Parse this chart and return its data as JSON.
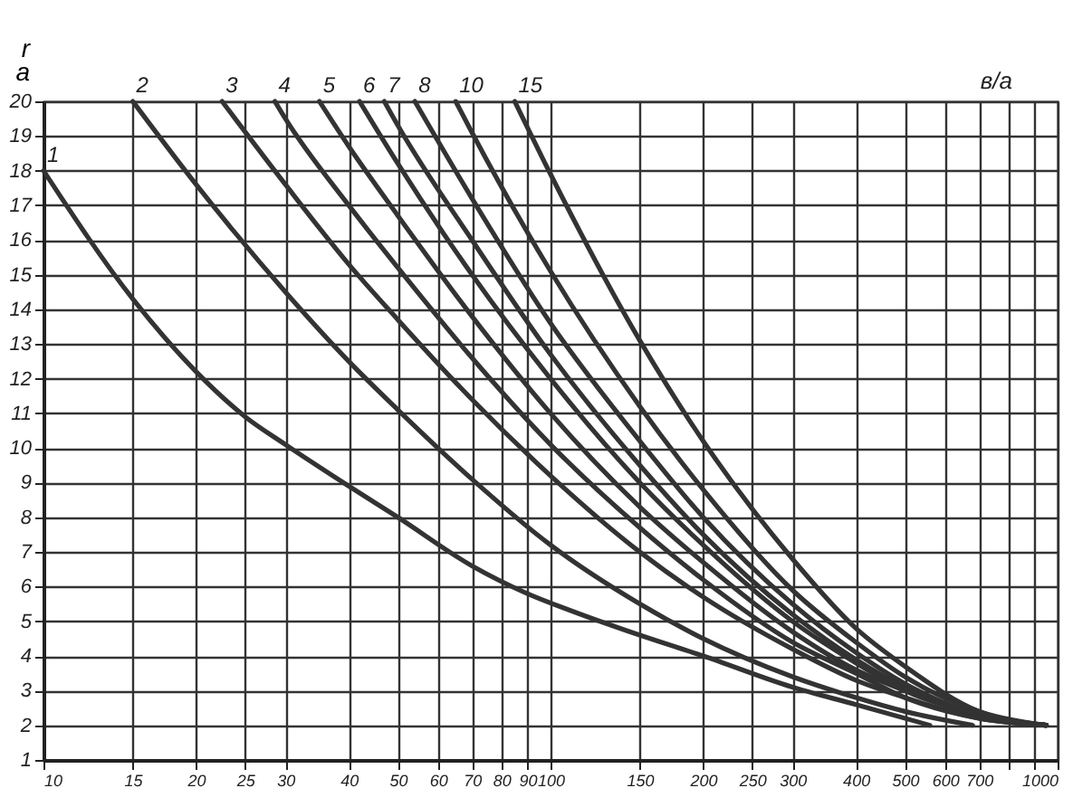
{
  "chart_data": {
    "type": "line",
    "ylabel": "r\na",
    "annotations": [
      "в/а"
    ],
    "xlim": [
      10,
      1000
    ],
    "log": "x",
    "xticks": [
      10,
      15,
      20,
      25,
      30,
      40,
      50,
      60,
      70,
      80,
      90,
      100,
      150,
      200,
      250,
      300,
      400,
      500,
      600,
      700,
      {
        "value": 800,
        "label": null
      },
      {
        "value": 900,
        "label": null
      },
      1000
    ],
    "ylim": [
      1,
      20
    ],
    "yticks": [
      1,
      2,
      3,
      4,
      5,
      6,
      7,
      8,
      9,
      10,
      11,
      12,
      13,
      14,
      15,
      16,
      17,
      18,
      19,
      20
    ],
    "grid": true,
    "series": [
      {
        "name": "1",
        "color": "#333333",
        "x": [
          10,
          15,
          20,
          25,
          30,
          40,
          50,
          70,
          90,
          110,
          150,
          200,
          300,
          400,
          560
        ],
        "values": [
          18,
          14.3,
          12.2,
          10.9,
          10.1,
          8.9,
          8.0,
          6.6,
          5.8,
          5.3,
          4.6,
          4.0,
          3.1,
          2.6,
          2.0
        ]
      },
      {
        "name": "2",
        "color": "#333333",
        "x": [
          15,
          20,
          30,
          40,
          50,
          70,
          100,
          150,
          200,
          300,
          400,
          500,
          680
        ],
        "values": [
          20,
          17.6,
          14.5,
          12.5,
          11.1,
          9.1,
          7.2,
          5.5,
          4.5,
          3.4,
          2.8,
          2.4,
          2.0
        ]
      },
      {
        "name": "3",
        "color": "#333333",
        "x": [
          22.5,
          30,
          40,
          50,
          70,
          100,
          150,
          200,
          300,
          400,
          500,
          700,
          950
        ],
        "values": [
          20,
          17.6,
          15.3,
          13.7,
          11.4,
          9.2,
          7.0,
          5.7,
          4.2,
          3.3,
          2.8,
          2.2,
          2.0
        ]
      },
      {
        "name": "4",
        "color": "#333333",
        "x": [
          28.6,
          30,
          40,
          50,
          70,
          100,
          150,
          200,
          300,
          400,
          500,
          700,
          950
        ],
        "values": [
          20,
          19.5,
          17.0,
          15.2,
          12.6,
          10.1,
          7.7,
          6.2,
          4.4,
          3.5,
          2.8,
          2.2,
          2.0
        ]
      },
      {
        "name": "5",
        "color": "#333333",
        "x": [
          35,
          40,
          50,
          70,
          100,
          150,
          200,
          300,
          400,
          500,
          700,
          950
        ],
        "values": [
          20,
          18.7,
          16.7,
          13.8,
          11.0,
          8.3,
          6.7,
          4.7,
          3.6,
          3.0,
          2.3,
          2.0
        ]
      },
      {
        "name": "6",
        "color": "#333333",
        "x": [
          42,
          50,
          70,
          100,
          150,
          200,
          300,
          400,
          500,
          700,
          950
        ],
        "values": [
          20,
          18.2,
          15.0,
          12.0,
          9.0,
          7.2,
          5.0,
          3.8,
          3.0,
          2.3,
          2.0
        ]
      },
      {
        "name": "7",
        "color": "#333333",
        "x": [
          47,
          50,
          70,
          100,
          150,
          200,
          300,
          400,
          500,
          700,
          950
        ],
        "values": [
          20,
          19.3,
          16.0,
          12.7,
          9.5,
          7.5,
          5.2,
          3.9,
          3.1,
          2.3,
          2.0
        ]
      },
      {
        "name": "8",
        "color": "#333333",
        "x": [
          54,
          70,
          100,
          150,
          200,
          300,
          400,
          500,
          700,
          950
        ],
        "values": [
          20,
          17.2,
          13.6,
          10.2,
          8.0,
          5.5,
          4.1,
          3.2,
          2.3,
          2.0
        ]
      },
      {
        "name": "10",
        "color": "#333333",
        "x": [
          65,
          70,
          100,
          150,
          200,
          300,
          400,
          500,
          700,
          950
        ],
        "values": [
          20,
          19.1,
          15.1,
          11.2,
          8.8,
          5.9,
          4.4,
          3.4,
          2.4,
          2.0
        ]
      },
      {
        "name": "15",
        "color": "#333333",
        "x": [
          85,
          100,
          150,
          200,
          300,
          400,
          500,
          700,
          950
        ],
        "values": [
          20,
          17.9,
          13.1,
          10.2,
          6.8,
          4.8,
          3.7,
          2.4,
          2.0
        ]
      }
    ]
  }
}
